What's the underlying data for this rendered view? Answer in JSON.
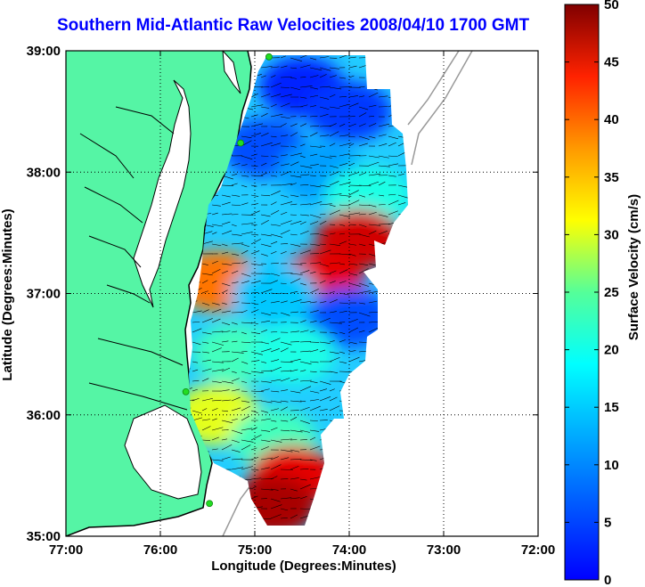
{
  "title": "Southern Mid-Atlantic Raw Velocities 2008/04/10 1700 GMT",
  "axes": {
    "xlabel": "Longitude (Degrees:Minutes)",
    "ylabel": "Latitude (Degrees:Minutes)",
    "x_ticks": [
      "77:00",
      "76:00",
      "75:00",
      "74:00",
      "73:00",
      "72:00"
    ],
    "y_ticks": [
      "39:00",
      "38:00",
      "37:00",
      "36:00",
      "35:00"
    ]
  },
  "colorbar": {
    "label": "Surface Velocity (cm/s)",
    "range": [
      0,
      50
    ],
    "ticks": [
      "0",
      "5",
      "10",
      "15",
      "20",
      "25",
      "30",
      "35",
      "40",
      "45",
      "50"
    ],
    "colormap": "jet"
  },
  "colors": {
    "land": "#55f5a5",
    "coastline": "#000000",
    "grid": "#000000",
    "bathymetry": "#999999",
    "station": "#22dd22",
    "title": "#0000ff"
  },
  "chart_data": {
    "type": "heatmap",
    "title": "Southern Mid-Atlantic Raw Velocities 2008/04/10 1700 GMT",
    "xlabel": "Longitude (Degrees:Minutes)",
    "ylabel": "Latitude (Degrees:Minutes)",
    "xlim": [
      -77,
      -72
    ],
    "ylim": [
      35,
      39
    ],
    "clim": [
      0,
      50
    ],
    "colorbar_label": "Surface Velocity (cm/s)",
    "stations": [
      {
        "lon": -74.85,
        "lat": 38.95
      },
      {
        "lon": -75.15,
        "lat": 38.24
      },
      {
        "lon": -75.73,
        "lat": 36.19
      },
      {
        "lon": -75.48,
        "lat": 35.27
      }
    ],
    "velocity_regions": [
      {
        "lon": -74.5,
        "lat": 38.7,
        "speed": 8
      },
      {
        "lon": -74.0,
        "lat": 38.5,
        "speed": 9
      },
      {
        "lon": -74.9,
        "lat": 38.2,
        "speed": 10
      },
      {
        "lon": -74.3,
        "lat": 38.0,
        "speed": 14
      },
      {
        "lon": -73.8,
        "lat": 37.8,
        "speed": 20
      },
      {
        "lon": -73.9,
        "lat": 37.45,
        "speed": 46
      },
      {
        "lon": -74.3,
        "lat": 37.1,
        "speed": 45
      },
      {
        "lon": -74.0,
        "lat": 36.8,
        "speed": 10
      },
      {
        "lon": -75.4,
        "lat": 37.1,
        "speed": 38
      },
      {
        "lon": -74.8,
        "lat": 37.0,
        "speed": 16
      },
      {
        "lon": -75.2,
        "lat": 36.5,
        "speed": 22
      },
      {
        "lon": -74.6,
        "lat": 36.5,
        "speed": 20
      },
      {
        "lon": -75.4,
        "lat": 36.0,
        "speed": 30
      },
      {
        "lon": -74.8,
        "lat": 35.8,
        "speed": 22
      },
      {
        "lon": -74.6,
        "lat": 35.5,
        "speed": 45
      },
      {
        "lon": -74.8,
        "lat": 35.25,
        "speed": 48
      }
    ]
  }
}
